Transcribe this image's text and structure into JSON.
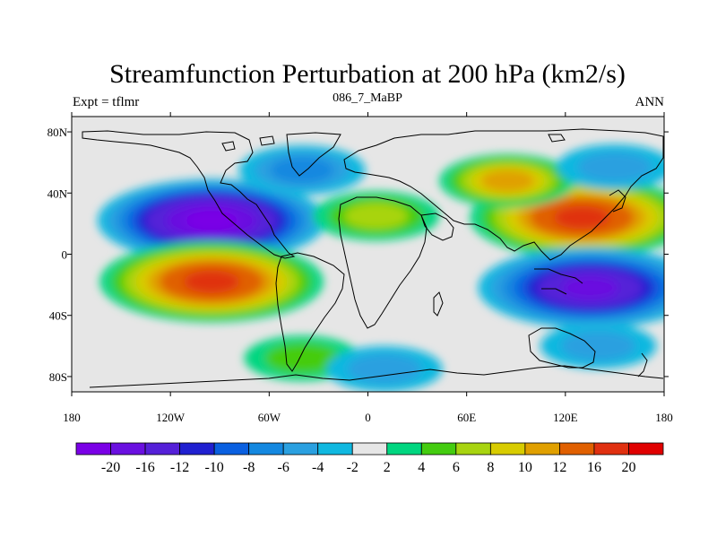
{
  "chart_data": {
    "type": "contour_map",
    "title": "Streamfunction Perturbation at 200 hPa (km2/s)",
    "subtitle": "086_7_MaBP",
    "left_label": "Expt = tflmr",
    "right_label": "ANN",
    "x_range": [
      -180,
      180
    ],
    "y_range": [
      -90,
      90
    ],
    "x_ticks": [
      {
        "value": -180,
        "label": "180"
      },
      {
        "value": -120,
        "label": "120W"
      },
      {
        "value": -60,
        "label": "60W"
      },
      {
        "value": 0,
        "label": "0"
      },
      {
        "value": 60,
        "label": "60E"
      },
      {
        "value": 120,
        "label": "120E"
      },
      {
        "value": 180,
        "label": "180"
      }
    ],
    "y_ticks": [
      {
        "value": 80,
        "label": "80N"
      },
      {
        "value": 40,
        "label": "40N"
      },
      {
        "value": 0,
        "label": "0"
      },
      {
        "value": -40,
        "label": "40S"
      },
      {
        "value": -80,
        "label": "80S"
      }
    ],
    "colorbar": {
      "colors": [
        "#7a00e6",
        "#6a10e0",
        "#5520d8",
        "#2020d0",
        "#0a60e0",
        "#1488e0",
        "#2aa0e0",
        "#10b8e0",
        "#e6e6e6",
        "#00d680",
        "#44cc10",
        "#a8d410",
        "#d8cc00",
        "#e0a000",
        "#e06000",
        "#e03010",
        "#e00000"
      ],
      "labels": [
        "-20",
        "-16",
        "-12",
        "-10",
        "-8",
        "-6",
        "-4",
        "-2",
        "2",
        "4",
        "6",
        "8",
        "10",
        "12",
        "16",
        "20"
      ]
    },
    "features": [
      {
        "name": "negative-center-north-pacific",
        "lon": -95,
        "lat": 22,
        "value": -20
      },
      {
        "name": "positive-center-south-pacific",
        "lon": -95,
        "lat": -18,
        "value": 16
      },
      {
        "name": "positive-center-asia",
        "lon": 130,
        "lat": 24,
        "value": 16
      },
      {
        "name": "negative-center-south-indian",
        "lon": 135,
        "lat": -22,
        "value": -16
      },
      {
        "name": "positive-center-north-africa",
        "lon": 5,
        "lat": 25,
        "value": 6
      },
      {
        "name": "negative-center-north-atlantic",
        "lon": -40,
        "lat": 55,
        "value": -6
      },
      {
        "name": "positive-center-central-asia",
        "lon": 85,
        "lat": 48,
        "value": 10
      },
      {
        "name": "negative-center-siberia",
        "lon": 150,
        "lat": 57,
        "value": -4
      },
      {
        "name": "positive-center-south-atlantic",
        "lon": -40,
        "lat": -68,
        "value": 4
      },
      {
        "name": "negative-center-antarctic",
        "lon": 10,
        "lat": -75,
        "value": -4
      },
      {
        "name": "negative-center-south-pacific-high",
        "lon": 140,
        "lat": -60,
        "value": -4
      }
    ]
  }
}
